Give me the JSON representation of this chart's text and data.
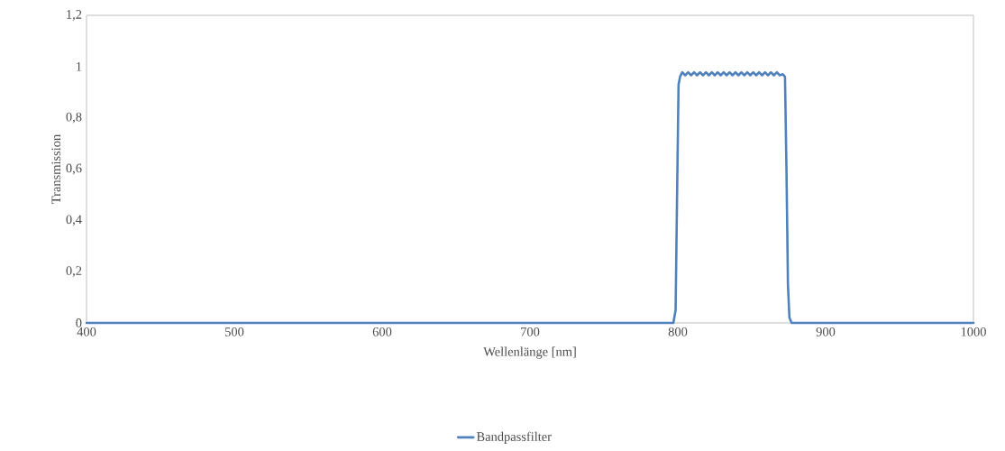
{
  "chart_data": {
    "type": "line",
    "xlabel": "Wellenlänge [nm]",
    "ylabel": "Transmission",
    "x": [
      400,
      500,
      600,
      700,
      780,
      797,
      798.5,
      799.5,
      800.5,
      801.5,
      803,
      805,
      807,
      809,
      811,
      813,
      815,
      817,
      819,
      821,
      823,
      825,
      827,
      829,
      831,
      833,
      835,
      837,
      839,
      841,
      843,
      845,
      847,
      849,
      851,
      853,
      855,
      857,
      859,
      861,
      863,
      865,
      867,
      869,
      871,
      872.5,
      873.5,
      874.5,
      875.5,
      877,
      900,
      1000
    ],
    "series": [
      {
        "name": "Bandpassfilter",
        "color": "#4f81bd",
        "values": [
          0,
          0,
          0,
          0,
          0,
          0,
          0.05,
          0.5,
          0.93,
          0.96,
          0.978,
          0.966,
          0.978,
          0.966,
          0.978,
          0.966,
          0.978,
          0.966,
          0.978,
          0.966,
          0.978,
          0.966,
          0.978,
          0.966,
          0.978,
          0.966,
          0.978,
          0.966,
          0.978,
          0.966,
          0.978,
          0.966,
          0.978,
          0.966,
          0.978,
          0.966,
          0.978,
          0.966,
          0.978,
          0.966,
          0.978,
          0.966,
          0.978,
          0.966,
          0.97,
          0.96,
          0.6,
          0.15,
          0.02,
          0,
          0,
          0
        ]
      }
    ],
    "xlim": [
      400,
      1000
    ],
    "ylim": [
      0,
      1.2
    ],
    "xticks": [
      400,
      500,
      600,
      700,
      800,
      900,
      1000
    ],
    "yticks": [
      0,
      {
        "value": 0.2,
        "label": "0,2"
      },
      {
        "value": 0.4,
        "label": "0,4"
      },
      {
        "value": 0.6,
        "label": "0,6"
      },
      {
        "value": 0.8,
        "label": "0,8"
      },
      1,
      {
        "value": 1.2,
        "label": "1,2"
      }
    ],
    "legend": "bottom",
    "marker": "none",
    "line_style": "solid"
  }
}
